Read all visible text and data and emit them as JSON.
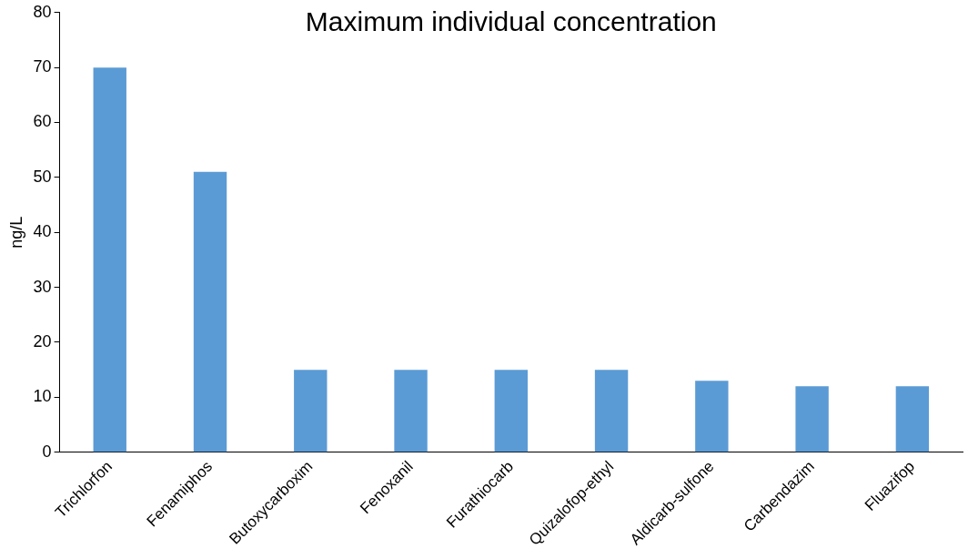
{
  "chart_data": {
    "type": "bar",
    "title": "Maximum individual concentration",
    "ylabel": "ng/L",
    "categories": [
      "Trichlorfon",
      "Fenamiphos",
      "Butoxycarboxim",
      "Fenoxanil",
      "Furathiocarb",
      "Quizalofop-ethyl",
      "Aldicarb-sulfone",
      "Carbendazim",
      "Fluazifop"
    ],
    "values": [
      70,
      51,
      15,
      15,
      15,
      15,
      13,
      12,
      12
    ],
    "color": "#5b9bd5",
    "ylim": [
      0,
      80
    ],
    "yticks": [
      0,
      10,
      20,
      30,
      40,
      50,
      60,
      70,
      80
    ],
    "grid": false,
    "legend": false
  }
}
